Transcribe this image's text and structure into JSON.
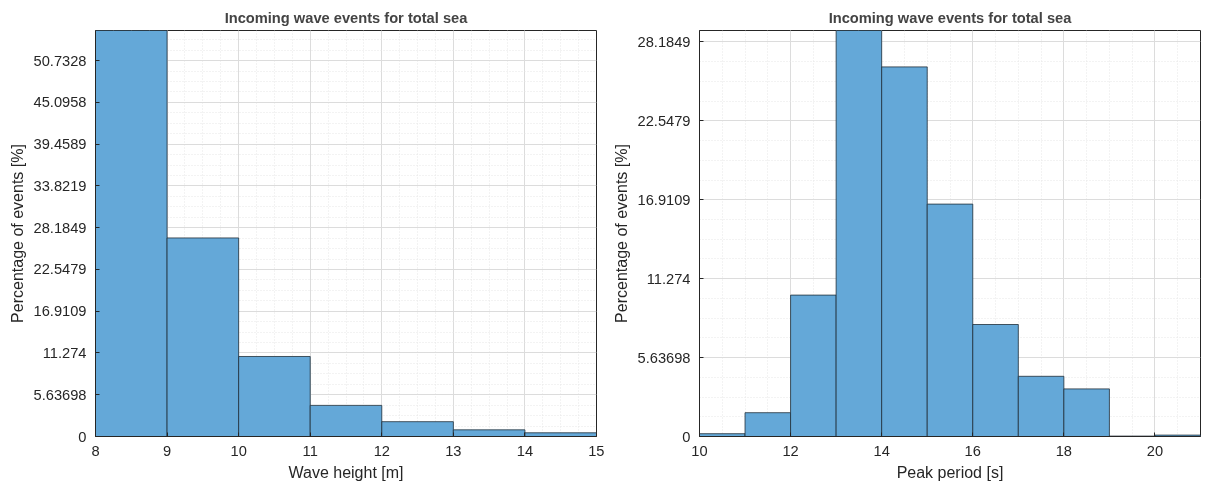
{
  "chart_data": [
    {
      "type": "histogram",
      "title": "Incoming wave events for total sea",
      "xlabel": "Wave height [m]",
      "ylabel": "Percentage of events [%]",
      "bins": [
        8,
        9,
        10,
        11,
        12,
        13,
        14,
        15
      ],
      "values": [
        54.8,
        26.8,
        10.8,
        4.2,
        2.0,
        0.9,
        0.5
      ],
      "color": "#64a8d8",
      "xlim": [
        8,
        15
      ],
      "xticks": [
        8,
        9,
        10,
        11,
        12,
        13,
        14,
        15
      ],
      "ylim": [
        0,
        54.8
      ],
      "yticks": [
        0,
        5.63698,
        11.274,
        16.9109,
        22.5479,
        28.1849,
        33.8219,
        39.4589,
        45.0958,
        50.7328
      ],
      "grid": true
    },
    {
      "type": "histogram",
      "title": "Incoming wave events for total sea",
      "xlabel": "Peak period [s]",
      "ylabel": "Percentage of events [%]",
      "bins": [
        10,
        11,
        12,
        13,
        14,
        15,
        16,
        17,
        18,
        19,
        20,
        21
      ],
      "values": [
        0.2,
        1.7,
        10.1,
        29.0,
        26.4,
        16.6,
        8.0,
        4.3,
        3.4,
        0.03,
        0.1
      ],
      "color": "#64a8d8",
      "xlim": [
        10,
        21
      ],
      "xticks": [
        10,
        12,
        14,
        16,
        18,
        20
      ],
      "ylim": [
        0,
        29.0
      ],
      "yticks": [
        0,
        5.63698,
        11.274,
        16.9109,
        22.5479,
        28.1849
      ],
      "grid": true
    }
  ]
}
